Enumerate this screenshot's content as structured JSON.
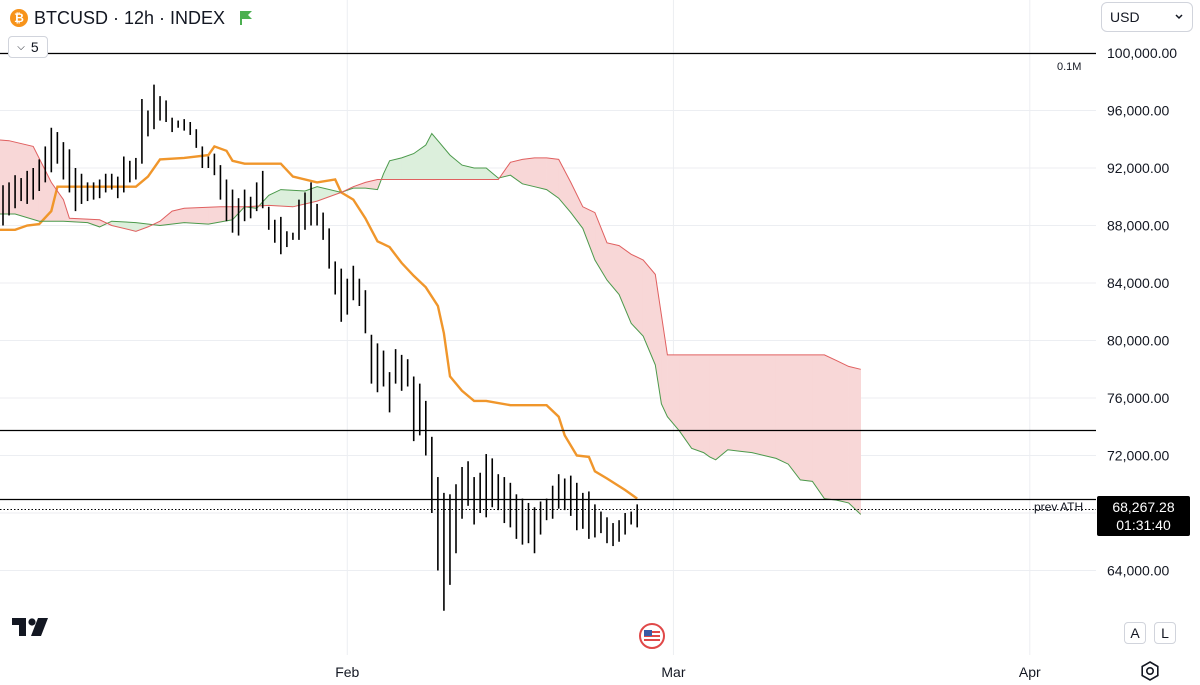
{
  "header": {
    "symbol_title": "BTCUSD · 12h · INDEX",
    "coin_icon": "bitcoin-icon",
    "interval_value": "5",
    "currency": "USD"
  },
  "price_label": {
    "price": "68,267.28",
    "countdown": "01:31:40"
  },
  "ath_label": "prev ATH",
  "volume_label": "0.1M",
  "scale_buttons": {
    "auto": "A",
    "log": "L"
  },
  "colors": {
    "orange": "#f0962b",
    "cloud_green": "#4c9a4c",
    "cloud_red": "#e06060",
    "cloud_red_fill": "#f8d7d7",
    "cloud_green_fill": "#dcefdc",
    "candle": "#000000"
  },
  "chart_data": {
    "type": "line",
    "title": "BTCUSD · 12h · INDEX",
    "xlabel": "",
    "ylabel": "",
    "y_ticks": [
      64000,
      68000,
      72000,
      76000,
      80000,
      84000,
      88000,
      92000,
      96000,
      100000
    ],
    "y_tick_labels": [
      "64,000.00",
      "68,000.00",
      "72,000.00",
      "76,000.00",
      "80,000.00",
      "84,000.00",
      "88,000.00",
      "92,000.00",
      "96,000.00",
      "100,000.00"
    ],
    "x_tick_labels": [
      {
        "label": "Feb",
        "index": 57
      },
      {
        "label": "Mar",
        "index": 111
      },
      {
        "label": "Apr",
        "index": 170
      }
    ],
    "ylim": [
      60000,
      103000
    ],
    "grid": true,
    "horizontal_lines": [
      {
        "name": "0.1M",
        "value": 100000
      },
      {
        "value": 73800
      },
      {
        "name": "prev ATH",
        "value": 69000
      },
      {
        "value": 68267.28,
        "style": "dotted"
      }
    ],
    "candles": [
      {
        "high": 90800,
        "low": 88000
      },
      {
        "high": 91000,
        "low": 88700
      },
      {
        "high": 91500,
        "low": 89200
      },
      {
        "high": 91300,
        "low": 89700
      },
      {
        "high": 91800,
        "low": 89500
      },
      {
        "high": 92000,
        "low": 89800
      },
      {
        "high": 92600,
        "low": 90400
      },
      {
        "high": 93500,
        "low": 91000
      },
      {
        "high": 94800,
        "low": 91700
      },
      {
        "high": 94500,
        "low": 92300
      },
      {
        "high": 93800,
        "low": 91200
      },
      {
        "high": 93300,
        "low": 90300
      },
      {
        "high": 92000,
        "low": 89000
      },
      {
        "high": 91600,
        "low": 89500
      },
      {
        "high": 91000,
        "low": 89700
      },
      {
        "high": 91000,
        "low": 89800
      },
      {
        "high": 91200,
        "low": 89900
      },
      {
        "high": 91600,
        "low": 90300
      },
      {
        "high": 91600,
        "low": 90500
      },
      {
        "high": 91400,
        "low": 89900
      },
      {
        "high": 92800,
        "low": 90300
      },
      {
        "high": 92500,
        "low": 91000
      },
      {
        "high": 92700,
        "low": 91200
      },
      {
        "high": 96800,
        "low": 92300
      },
      {
        "high": 96000,
        "low": 94200
      },
      {
        "high": 97800,
        "low": 94700
      },
      {
        "high": 97000,
        "low": 95300
      },
      {
        "high": 96700,
        "low": 95200
      },
      {
        "high": 95500,
        "low": 94500
      },
      {
        "high": 95300,
        "low": 94800
      },
      {
        "high": 95400,
        "low": 94600
      },
      {
        "high": 95200,
        "low": 94300
      },
      {
        "high": 94700,
        "low": 93400
      },
      {
        "high": 93500,
        "low": 92000
      },
      {
        "high": 92800,
        "low": 92000
      },
      {
        "high": 93000,
        "low": 91500
      },
      {
        "high": 92200,
        "low": 89800
      },
      {
        "high": 91200,
        "low": 88300
      },
      {
        "high": 90500,
        "low": 87500
      },
      {
        "high": 89900,
        "low": 87300
      },
      {
        "high": 90500,
        "low": 88300
      },
      {
        "high": 90000,
        "low": 88500
      },
      {
        "high": 91000,
        "low": 89000
      },
      {
        "high": 91800,
        "low": 89200
      },
      {
        "high": 89300,
        "low": 87700
      },
      {
        "high": 88400,
        "low": 86800
      },
      {
        "high": 88600,
        "low": 86000
      },
      {
        "high": 87600,
        "low": 86500
      },
      {
        "high": 87500,
        "low": 87000
      },
      {
        "high": 89800,
        "low": 87000
      },
      {
        "high": 90300,
        "low": 87700
      },
      {
        "high": 91000,
        "low": 88000
      },
      {
        "high": 89500,
        "low": 88000
      },
      {
        "high": 88900,
        "low": 87000
      },
      {
        "high": 87800,
        "low": 85000
      },
      {
        "high": 85500,
        "low": 83200
      },
      {
        "high": 85000,
        "low": 81300
      },
      {
        "high": 84300,
        "low": 81800
      },
      {
        "high": 85200,
        "low": 82800
      },
      {
        "high": 84300,
        "low": 82400
      },
      {
        "high": 83500,
        "low": 80500
      },
      {
        "high": 80400,
        "low": 77000
      },
      {
        "high": 79800,
        "low": 76400
      },
      {
        "high": 79300,
        "low": 76800
      },
      {
        "high": 77800,
        "low": 75000
      },
      {
        "high": 79400,
        "low": 77000
      },
      {
        "high": 79000,
        "low": 76500
      },
      {
        "high": 78700,
        "low": 76800
      },
      {
        "high": 77500,
        "low": 73000
      },
      {
        "high": 77000,
        "low": 73400
      },
      {
        "high": 75800,
        "low": 72000
      },
      {
        "high": 73300,
        "low": 68000
      },
      {
        "high": 70500,
        "low": 64000
      },
      {
        "high": 69400,
        "low": 61200
      },
      {
        "high": 69300,
        "low": 63000
      },
      {
        "high": 70000,
        "low": 65200
      },
      {
        "high": 71200,
        "low": 67600
      },
      {
        "high": 71600,
        "low": 68500
      },
      {
        "high": 70500,
        "low": 67200
      },
      {
        "high": 70800,
        "low": 68000
      },
      {
        "high": 72100,
        "low": 67700
      },
      {
        "high": 71800,
        "low": 68400
      },
      {
        "high": 70700,
        "low": 68200
      },
      {
        "high": 70500,
        "low": 67300
      },
      {
        "high": 70100,
        "low": 67000
      },
      {
        "high": 69300,
        "low": 66200
      },
      {
        "high": 69000,
        "low": 65800
      },
      {
        "high": 68700,
        "low": 65900
      },
      {
        "high": 68400,
        "low": 65200
      },
      {
        "high": 68800,
        "low": 66500
      },
      {
        "high": 69000,
        "low": 67500
      },
      {
        "high": 69900,
        "low": 67600
      },
      {
        "high": 70700,
        "low": 68300
      },
      {
        "high": 70400,
        "low": 68200
      },
      {
        "high": 70600,
        "low": 67800
      },
      {
        "high": 70100,
        "low": 66800
      },
      {
        "high": 69400,
        "low": 66900
      },
      {
        "high": 69500,
        "low": 66200
      },
      {
        "high": 68600,
        "low": 66300
      },
      {
        "high": 68100,
        "low": 66600
      },
      {
        "high": 67700,
        "low": 65900
      },
      {
        "high": 67300,
        "low": 65700
      },
      {
        "high": 67500,
        "low": 66000
      },
      {
        "high": 68000,
        "low": 66500
      },
      {
        "high": 68100,
        "low": 67200
      },
      {
        "high": 68600,
        "low": 67000
      }
    ],
    "series": [
      {
        "points": [
          [
            -2,
            87700
          ],
          [
            2,
            87700
          ],
          [
            4,
            88000
          ],
          [
            6,
            88100
          ],
          [
            8,
            89000
          ],
          [
            9,
            90700
          ],
          [
            16,
            90700
          ],
          [
            22,
            90700
          ],
          [
            24,
            91400
          ],
          [
            26,
            92600
          ],
          [
            30,
            92700
          ],
          [
            34,
            92900
          ],
          [
            35,
            93500
          ],
          [
            37,
            93200
          ],
          [
            38,
            92500
          ],
          [
            40,
            92300
          ],
          [
            46,
            92300
          ],
          [
            48,
            91400
          ],
          [
            52,
            91000
          ],
          [
            55,
            91200
          ],
          [
            56,
            90300
          ],
          [
            58,
            89800
          ],
          [
            60,
            88500
          ],
          [
            61,
            87700
          ],
          [
            62,
            86900
          ],
          [
            64,
            86500
          ],
          [
            66,
            85400
          ],
          [
            68,
            84500
          ],
          [
            70,
            83700
          ],
          [
            72,
            82400
          ],
          [
            73,
            80500
          ],
          [
            74,
            77500
          ],
          [
            76,
            76500
          ],
          [
            78,
            75800
          ],
          [
            80,
            75800
          ],
          [
            84,
            75500
          ],
          [
            90,
            75500
          ],
          [
            92,
            74700
          ],
          [
            93,
            73400
          ],
          [
            95,
            72000
          ],
          [
            97,
            71900
          ],
          [
            98,
            70900
          ],
          [
            100,
            70400
          ],
          [
            103,
            69600
          ],
          [
            105,
            69000
          ]
        ]
      },
      {
        "points": [
          [
            -2,
            88800
          ],
          [
            2,
            88800
          ],
          [
            6,
            88300
          ],
          [
            10,
            88300
          ],
          [
            14,
            88200
          ],
          [
            16,
            87900
          ],
          [
            18,
            88300
          ],
          [
            22,
            88200
          ],
          [
            26,
            88000
          ],
          [
            30,
            88200
          ],
          [
            34,
            88100
          ],
          [
            38,
            88400
          ],
          [
            40,
            89300
          ],
          [
            42,
            89200
          ],
          [
            44,
            90100
          ],
          [
            46,
            90500
          ],
          [
            50,
            90400
          ],
          [
            52,
            90700
          ],
          [
            56,
            90300
          ],
          [
            58,
            90600
          ],
          [
            60,
            90600
          ],
          [
            62,
            90500
          ],
          [
            63,
            91600
          ],
          [
            64,
            92500
          ],
          [
            66,
            92700
          ],
          [
            68,
            93000
          ],
          [
            70,
            93600
          ],
          [
            71,
            94400
          ],
          [
            72,
            93900
          ],
          [
            74,
            92900
          ],
          [
            76,
            92200
          ],
          [
            78,
            92000
          ],
          [
            80,
            92000
          ],
          [
            82,
            91300
          ],
          [
            84,
            91500
          ],
          [
            86,
            90900
          ],
          [
            88,
            90700
          ],
          [
            90,
            90500
          ],
          [
            92,
            89900
          ],
          [
            94,
            88900
          ],
          [
            96,
            87800
          ],
          [
            98,
            85600
          ],
          [
            100,
            84200
          ],
          [
            102,
            83200
          ],
          [
            104,
            81200
          ],
          [
            106,
            80300
          ],
          [
            108,
            78300
          ],
          [
            109,
            75600
          ],
          [
            110,
            74700
          ],
          [
            112,
            73700
          ],
          [
            114,
            72500
          ],
          [
            116,
            72200
          ],
          [
            117,
            71900
          ],
          [
            118,
            71700
          ],
          [
            120,
            72400
          ],
          [
            122,
            72300
          ],
          [
            124,
            72200
          ],
          [
            126,
            72000
          ],
          [
            128,
            71800
          ],
          [
            130,
            71400
          ],
          [
            132,
            70300
          ],
          [
            134,
            70200
          ],
          [
            136,
            69000
          ],
          [
            138,
            68900
          ],
          [
            140,
            68700
          ],
          [
            142,
            67900
          ]
        ]
      },
      {
        "points": [
          [
            -2,
            94000
          ],
          [
            1,
            93900
          ],
          [
            5,
            93500
          ],
          [
            8,
            91000
          ],
          [
            10,
            89800
          ],
          [
            11,
            88500
          ],
          [
            16,
            88400
          ],
          [
            18,
            88000
          ],
          [
            22,
            87600
          ],
          [
            24,
            87900
          ],
          [
            26,
            88300
          ],
          [
            28,
            89000
          ],
          [
            30,
            89200
          ],
          [
            36,
            89300
          ],
          [
            40,
            89300
          ],
          [
            44,
            89400
          ],
          [
            48,
            89300
          ],
          [
            52,
            89700
          ],
          [
            56,
            90300
          ],
          [
            58,
            90700
          ],
          [
            60,
            91000
          ],
          [
            62,
            91200
          ],
          [
            70,
            91200
          ],
          [
            76,
            91200
          ],
          [
            82,
            91200
          ],
          [
            84,
            92400
          ],
          [
            86,
            92600
          ],
          [
            88,
            92700
          ],
          [
            90,
            92700
          ],
          [
            92,
            92600
          ],
          [
            94,
            91000
          ],
          [
            96,
            89300
          ],
          [
            98,
            88900
          ],
          [
            100,
            86800
          ],
          [
            102,
            86600
          ],
          [
            104,
            86000
          ],
          [
            106,
            85600
          ],
          [
            108,
            84600
          ],
          [
            110,
            79000
          ],
          [
            114,
            79000
          ],
          [
            122,
            79000
          ],
          [
            130,
            79000
          ],
          [
            136,
            79000
          ],
          [
            138,
            78600
          ],
          [
            140,
            78200
          ],
          [
            142,
            78000
          ]
        ]
      }
    ]
  }
}
